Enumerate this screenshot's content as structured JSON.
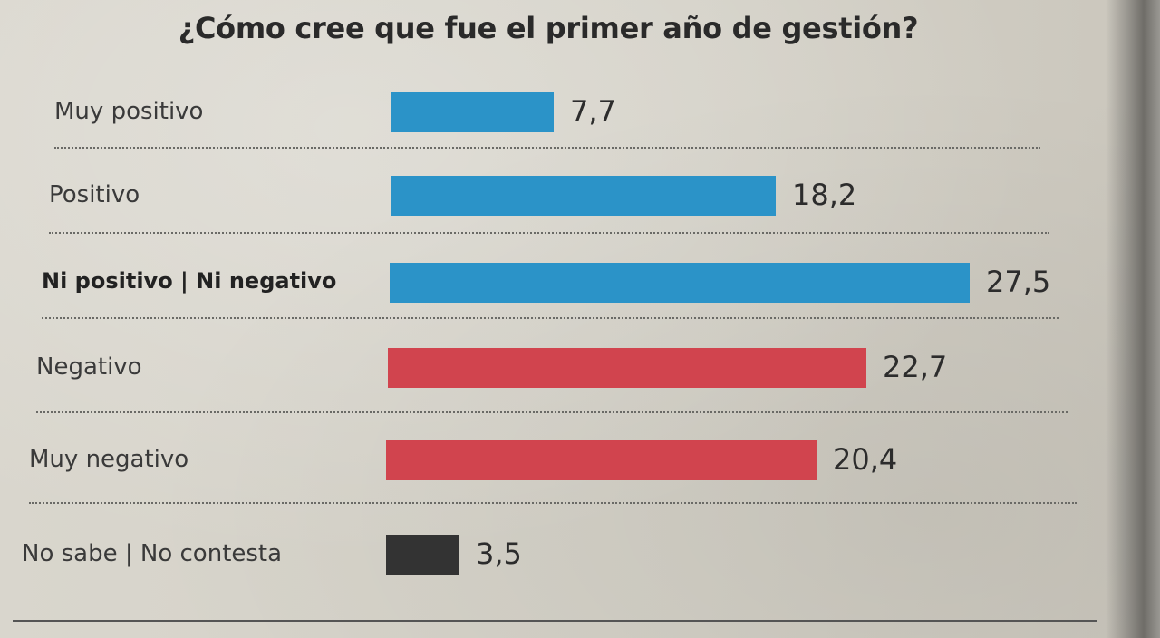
{
  "chart_data": {
    "type": "bar",
    "orientation": "horizontal",
    "title": "¿Cómo cree que fue el primer año de gestión?",
    "categories": [
      "Muy positivo",
      "Positivo",
      "Ni positivo | Ni negativo",
      "Negativo",
      "Muy negativo",
      "No sabe | No contesta"
    ],
    "values": [
      7.7,
      18.2,
      27.5,
      22.7,
      20.4,
      3.5
    ],
    "value_labels": [
      "7,7",
      "18,2",
      "27,5",
      "22,7",
      "20,4",
      "3,5"
    ],
    "bar_colors": [
      "#2b93c8",
      "#2b93c8",
      "#2b93c8",
      "#d1444e",
      "#d1444e",
      "#333333"
    ],
    "emphasized_category": "Ni positivo | Ni negativo",
    "xlim": [
      0,
      27.5
    ],
    "grid": false,
    "legend": "none"
  }
}
